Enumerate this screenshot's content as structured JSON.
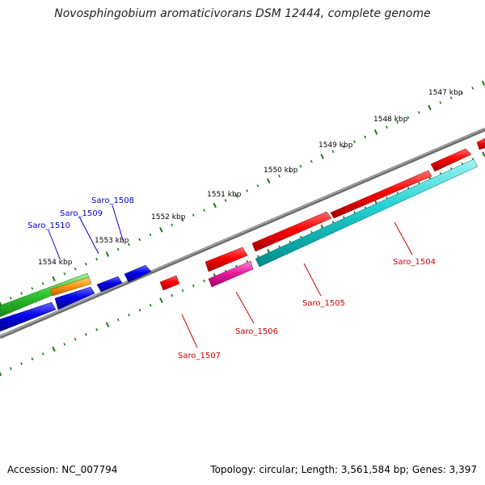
{
  "title": "Novosphingobium aromaticivorans DSM 12444, complete genome",
  "footer": {
    "accession": "Accession: NC_007794",
    "summary": "Topology: circular; Length: 3,561,584 bp; Genes: 3,397"
  },
  "colors": {
    "ruler_tick": "#1a7a1a",
    "backbone": "#888888",
    "label_red": "#cc0000",
    "label_blue": "#0000cc"
  },
  "ruler": {
    "labels": [
      "1547 kbp",
      "1548 kbp",
      "1549 kbp",
      "1550 kbp",
      "1551 kbp",
      "1552 kbp",
      "1553 kbp",
      "1554 kbp"
    ]
  },
  "genes": [
    {
      "id": "Saro_1504",
      "label": "Saro_1504",
      "strand": "forward",
      "color": "#e00000"
    },
    {
      "id": "Saro_1505",
      "label": "Saro_1505",
      "strand": "reverse",
      "color": "#00c8c8"
    },
    {
      "id": "Saro_1506",
      "label": "Saro_1506",
      "strand": "reverse",
      "color": "#e0008c"
    },
    {
      "id": "Saro_1507",
      "label": "Saro_1507",
      "strand": "forward",
      "color": "#e00000"
    },
    {
      "id": "Saro_1508",
      "label": "Saro_1508",
      "strand": "forward",
      "color": "#0000e0"
    },
    {
      "id": "Saro_1509",
      "label": "Saro_1509",
      "strand": "forward",
      "color": "#0000e0"
    },
    {
      "id": "Saro_1510",
      "label": "Saro_1510",
      "strand": "forward",
      "color": "#0000e0"
    }
  ]
}
